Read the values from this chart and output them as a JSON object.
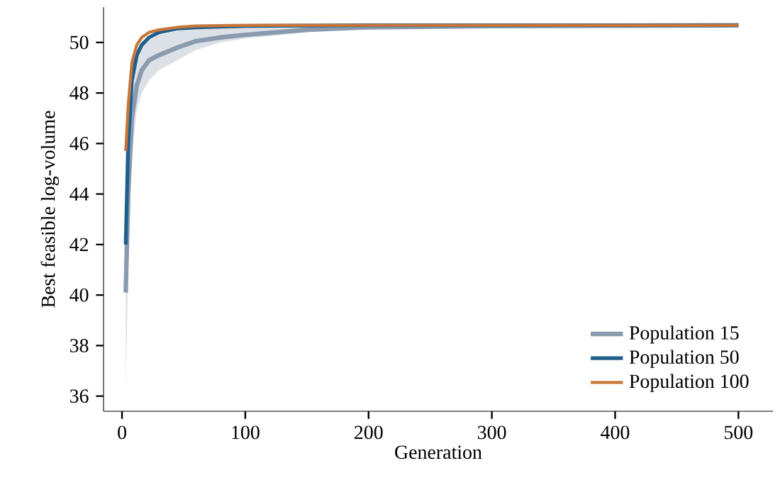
{
  "chart_data": {
    "type": "line",
    "xlabel": "Generation",
    "ylabel": "Best feasible log-volume",
    "xlim": [
      -15,
      528
    ],
    "ylim": [
      35.4,
      51.4
    ],
    "xticks": [
      0,
      100,
      200,
      300,
      400,
      500
    ],
    "yticks": [
      36,
      38,
      40,
      42,
      44,
      46,
      48,
      50
    ],
    "legend": "bottom right",
    "grid": false,
    "series": [
      {
        "name": "Population 15",
        "color": "#8a9bb0",
        "x": [
          3,
          5,
          8,
          12,
          16,
          22,
          30,
          45,
          60,
          80,
          100,
          150,
          200,
          300,
          500
        ],
        "values": [
          40.1,
          44,
          47,
          48.3,
          48.9,
          49.3,
          49.5,
          49.8,
          50.05,
          50.2,
          50.3,
          50.5,
          50.6,
          50.65,
          50.68
        ],
        "lower": [
          36.3,
          41,
          45.5,
          47.3,
          48,
          48.5,
          48.9,
          49.3,
          49.7,
          50.0,
          50.15,
          50.4,
          50.55,
          50.63,
          50.67
        ],
        "upper": [
          44,
          46.5,
          48.5,
          49.5,
          49.9,
          50.1,
          50.3,
          50.45,
          50.55,
          50.6,
          50.62,
          50.65,
          50.67,
          50.68,
          50.68
        ]
      },
      {
        "name": "Population 50",
        "color": "#1f5f8b",
        "x": [
          3,
          5,
          8,
          12,
          16,
          22,
          30,
          45,
          60,
          100,
          200,
          500
        ],
        "values": [
          42,
          46,
          48.5,
          49.5,
          49.9,
          50.2,
          50.4,
          50.55,
          50.6,
          50.65,
          50.68,
          50.68
        ]
      },
      {
        "name": "Population 100",
        "color": "#c8773a",
        "x": [
          3,
          5,
          8,
          12,
          16,
          22,
          30,
          45,
          60,
          100,
          500
        ],
        "values": [
          45.7,
          47.5,
          49.2,
          49.9,
          50.2,
          50.4,
          50.5,
          50.6,
          50.65,
          50.68,
          50.68
        ]
      }
    ]
  }
}
